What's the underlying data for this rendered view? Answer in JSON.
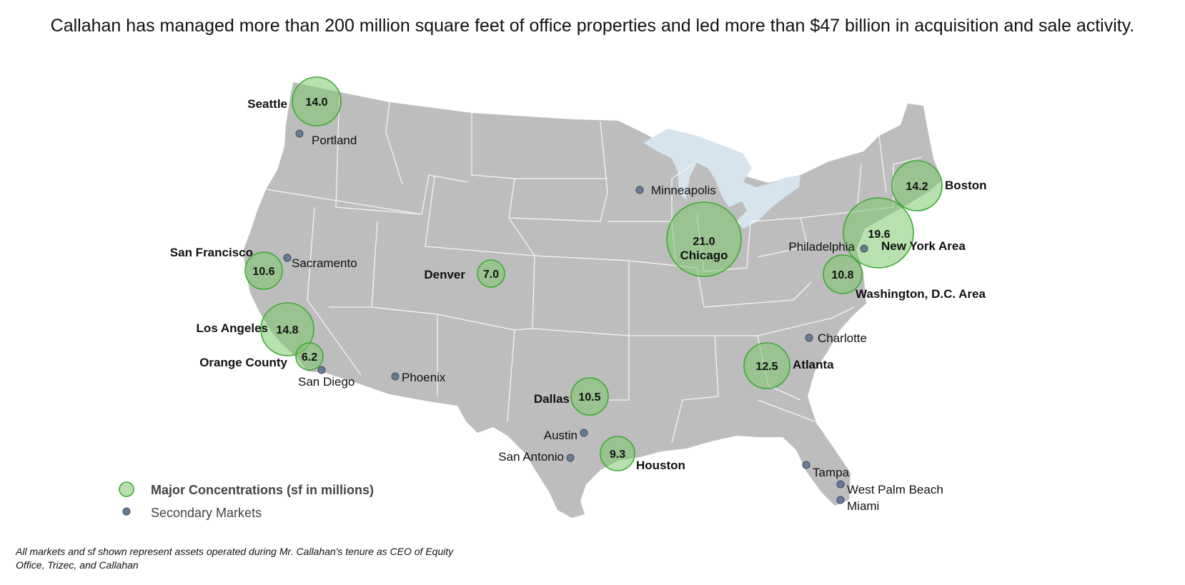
{
  "headline": "Callahan has managed more than 200 million square feet of office properties and led more than $47 billion in acquisition and sale activity.",
  "colors": {
    "land": "#bdbdbd",
    "water": "#d6e4ee",
    "major_fill": "#7dc96e",
    "major_stroke": "#3ea935",
    "secondary_dot": "#6a7b94"
  },
  "major_markets": [
    {
      "name": "Seattle",
      "value": "14.0"
    },
    {
      "name": "Boston",
      "value": "14.2"
    },
    {
      "name": "New York Area",
      "value": "19.6"
    },
    {
      "name": "Chicago",
      "value": "21.0"
    },
    {
      "name": "Washington, D.C. Area",
      "value": "10.8"
    },
    {
      "name": "San Francisco",
      "value": "10.6"
    },
    {
      "name": "Denver",
      "value": "7.0"
    },
    {
      "name": "Los Angeles",
      "value": "14.8"
    },
    {
      "name": "Orange County",
      "value": "6.2"
    },
    {
      "name": "Atlanta",
      "value": "12.5"
    },
    {
      "name": "Dallas",
      "value": "10.5"
    },
    {
      "name": "Houston",
      "value": "9.3"
    }
  ],
  "secondary_markets": [
    "Portland",
    "Minneapolis",
    "Philadelphia",
    "Sacramento",
    "Charlotte",
    "San Diego",
    "Phoenix",
    "Austin",
    "San Antonio",
    "Tampa",
    "West Palm Beach",
    "Miami"
  ],
  "legend": {
    "major_label": "Major Concentrations (sf in millions)",
    "secondary_label": "Secondary Markets"
  },
  "footnote": "All markets and sf shown represent assets operated during Mr. Callahan's tenure as CEO of Equity Office, Trizec, and Callahan"
}
